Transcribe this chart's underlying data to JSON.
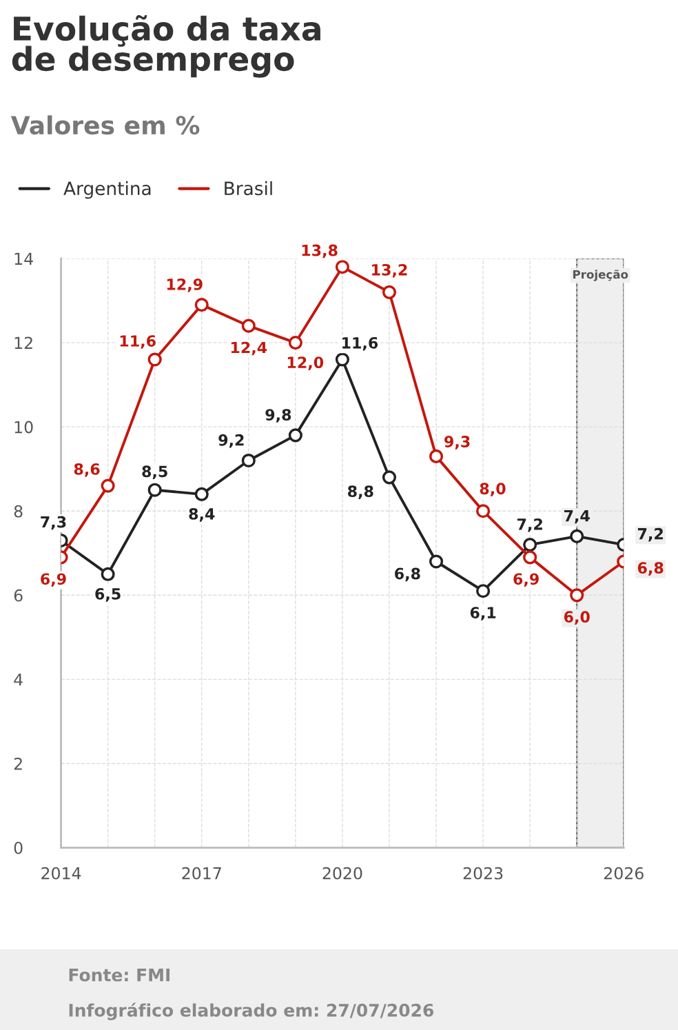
{
  "chart_data": {
    "type": "line",
    "title": "Evolução da taxa\nde desemprego",
    "subtitle": "Valores em %",
    "x": [
      2014,
      2015,
      2016,
      2017,
      2018,
      2019,
      2020,
      2021,
      2022,
      2023,
      2024,
      2025,
      2026
    ],
    "series": [
      {
        "name": "Argentina",
        "color": "#222222",
        "values": [
          7.3,
          6.5,
          8.5,
          8.4,
          9.2,
          9.8,
          11.6,
          8.8,
          6.8,
          6.1,
          7.2,
          7.4,
          7.2
        ],
        "value_labels": [
          "7,3",
          "6,5",
          "8,5",
          "8,4",
          "9,2",
          "9,8",
          "11,6",
          "8,8",
          "6,8",
          "6,1",
          "7,2",
          "7,4",
          "7,2"
        ]
      },
      {
        "name": "Brasil",
        "color": "#c4170c",
        "values": [
          6.9,
          8.6,
          11.6,
          12.9,
          12.4,
          12.0,
          13.8,
          13.2,
          9.3,
          8.0,
          6.9,
          6.0,
          6.8
        ],
        "value_labels": [
          "6,9",
          "8,6",
          "11,6",
          "12,9",
          "12,4",
          "12,0",
          "13,8",
          "13,2",
          "9,3",
          "8,0",
          "6,9",
          "6,0",
          "6,8"
        ]
      }
    ],
    "xlim": [
      2014,
      2026
    ],
    "xticks": [
      2014,
      2017,
      2020,
      2023,
      2026
    ],
    "ylim": [
      0,
      14
    ],
    "yticks": [
      0,
      2,
      4,
      6,
      8,
      10,
      12,
      14
    ],
    "bands": [
      {
        "axis": "x",
        "from": 2025,
        "to": 2026,
        "label": "Projeção",
        "color": "#efefef"
      }
    ],
    "grid": true,
    "legend": "top left",
    "marker": "circle",
    "line_style": "solid",
    "annotations": [
      "Fonte: FMI",
      "Infográfico elaborado em: 27/07/2026"
    ]
  }
}
